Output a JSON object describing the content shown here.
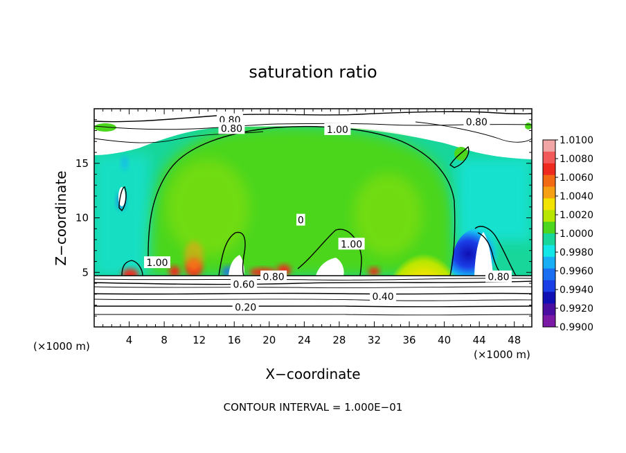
{
  "chart_data": {
    "type": "heatmap",
    "title": "saturation ratio",
    "xlabel": "X−coordinate",
    "ylabel": "Z−coordinate",
    "x_unit_left": "(×1000 m)",
    "x_unit_right": "(×1000 m)",
    "footer": "CONTOUR INTERVAL = 1.000E−01",
    "xlim": [
      0,
      50
    ],
    "ylim": [
      0,
      20
    ],
    "x_ticks": [
      {
        "value": 4,
        "label": "4"
      },
      {
        "value": 8,
        "label": "8"
      },
      {
        "value": 12,
        "label": "12"
      },
      {
        "value": 16,
        "label": "16"
      },
      {
        "value": 20,
        "label": "20"
      },
      {
        "value": 24,
        "label": "24"
      },
      {
        "value": 28,
        "label": "28"
      },
      {
        "value": 32,
        "label": "32"
      },
      {
        "value": 36,
        "label": "36"
      },
      {
        "value": 40,
        "label": "40"
      },
      {
        "value": 44,
        "label": "44"
      },
      {
        "value": 48,
        "label": "48"
      }
    ],
    "y_ticks": [
      {
        "value": 5,
        "label": "5"
      },
      {
        "value": 10,
        "label": "10"
      },
      {
        "value": 15,
        "label": "15"
      }
    ],
    "colorbar": {
      "min": 0.99,
      "max": 1.01,
      "labels": [
        "1.0100",
        "1.0080",
        "1.0060",
        "1.0040",
        "1.0020",
        "1.0000",
        "0.9980",
        "0.9960",
        "0.9940",
        "0.9920",
        "0.9900"
      ],
      "colors": [
        "#f2a5a5",
        "#f25a5a",
        "#ee2a1f",
        "#f26a14",
        "#f5a014",
        "#f2e400",
        "#b8e600",
        "#4cd61e",
        "#18d69a",
        "#12e6e6",
        "#18aef5",
        "#1a6ef2",
        "#1a3ee6",
        "#0f0fb4",
        "#4a0fa0",
        "#7a1aa5"
      ]
    },
    "contour_labels": [
      {
        "text": "0.80",
        "x": 15.5,
        "y": 19.0
      },
      {
        "text": "0.80",
        "x": 15.7,
        "y": 18.2
      },
      {
        "text": "0.80",
        "x": 43.7,
        "y": 18.8
      },
      {
        "text": "1.00",
        "x": 27.8,
        "y": 18.1
      },
      {
        "text": "0",
        "x": 23.6,
        "y": 9.8
      },
      {
        "text": "1.00",
        "x": 29.4,
        "y": 7.6
      },
      {
        "text": "1.00",
        "x": 7.2,
        "y": 5.9
      },
      {
        "text": "0.60",
        "x": 17.1,
        "y": 3.9
      },
      {
        "text": "0.80",
        "x": 20.5,
        "y": 4.6
      },
      {
        "text": "0.40",
        "x": 33.0,
        "y": 2.8
      },
      {
        "text": "0.20",
        "x": 17.3,
        "y": 1.8
      },
      {
        "text": "0.80",
        "x": 46.2,
        "y": 4.6
      }
    ]
  }
}
